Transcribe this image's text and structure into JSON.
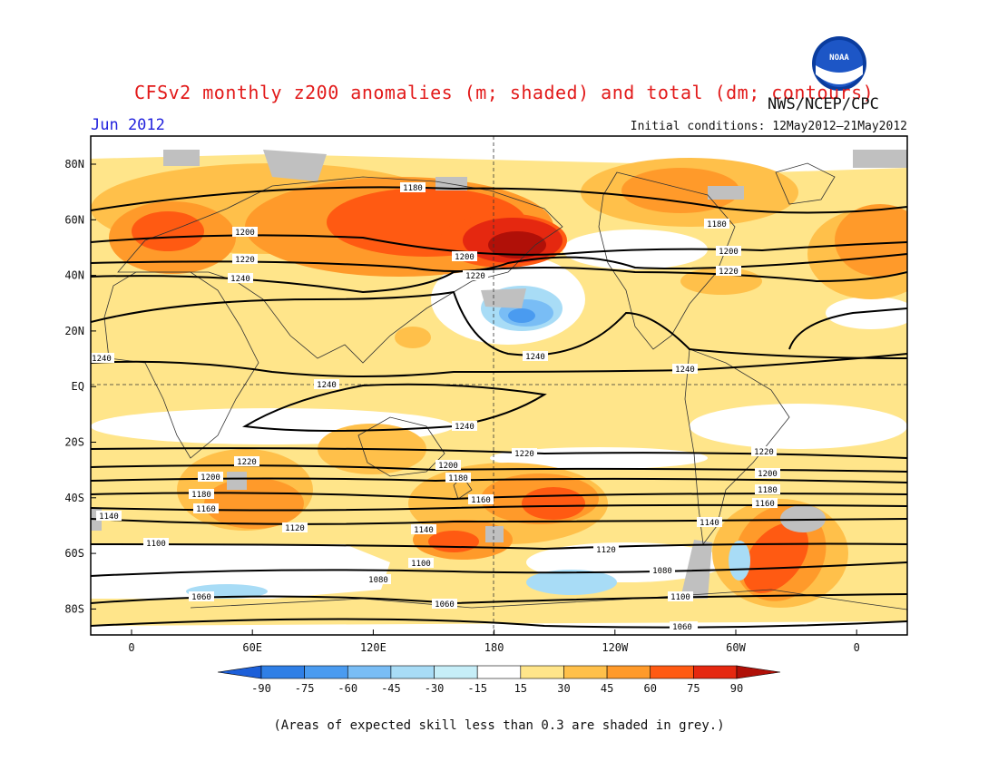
{
  "header": {
    "title": "CFSv2 monthly z200 anomalies (m; shaded) and total (dm; contours)",
    "agency": "NWS/NCEP/CPC",
    "logo_text": "NOAA",
    "month": "Jun 2012",
    "initial_conditions": "Initial conditions: 12May2012–21May2012"
  },
  "axes": {
    "lat_labels": [
      "80N",
      "60N",
      "40N",
      "20N",
      "EQ",
      "20S",
      "40S",
      "60S",
      "80S"
    ],
    "lon_labels": [
      "0",
      "60E",
      "120E",
      "180",
      "120W",
      "60W",
      "0"
    ]
  },
  "contour_labels": [
    "1180",
    "1200",
    "1220",
    "1240",
    "1200",
    "1220",
    "1180",
    "1200",
    "1220",
    "1240",
    "1240",
    "1240",
    "1240",
    "1240",
    "1220",
    "1200",
    "1180",
    "1160",
    "1140",
    "1120",
    "1100",
    "1080",
    "1060",
    "1220",
    "1200",
    "1180",
    "1160",
    "1140",
    "1120",
    "1100",
    "1080",
    "1060",
    "1220",
    "1200",
    "1180",
    "1160",
    "1140",
    "1120",
    "1100",
    "1080",
    "1060"
  ],
  "legend": {
    "values": [
      "-90",
      "-75",
      "-60",
      "-45",
      "-30",
      "-15",
      "15",
      "30",
      "45",
      "60",
      "75",
      "90"
    ],
    "colors": [
      "#1c5fd9",
      "#2f7fe6",
      "#4a9bf0",
      "#79bdf5",
      "#a8dcf6",
      "#c6eef8",
      "#ffffff",
      "#ffe58a",
      "#ffc04a",
      "#ff9a2a",
      "#ff5a12",
      "#e52810",
      "#b01008"
    ]
  },
  "footnote": "(Areas of expected skill less than 0.3 are shaded in grey.)"
}
